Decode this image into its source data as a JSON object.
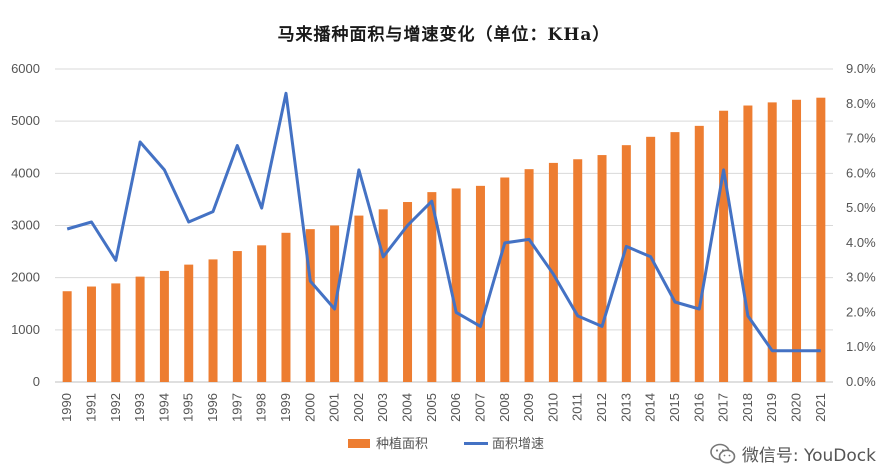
{
  "chart_data": {
    "type": "bar",
    "title": "马来播种面积与增速变化（单位：KHa）",
    "categories": [
      "1990",
      "1991",
      "1992",
      "1993",
      "1994",
      "1995",
      "1996",
      "1997",
      "1998",
      "1999",
      "2000",
      "2001",
      "2002",
      "2003",
      "2004",
      "2005",
      "2006",
      "2007",
      "2008",
      "2009",
      "2010",
      "2011",
      "2012",
      "2013",
      "2014",
      "2015",
      "2016",
      "2017",
      "2018",
      "2019",
      "2020",
      "2021"
    ],
    "series": [
      {
        "name": "种植面积",
        "type": "bar",
        "axis": "left",
        "color": "#ED7D31",
        "values": [
          1740,
          1830,
          1890,
          2020,
          2130,
          2250,
          2350,
          2510,
          2620,
          2860,
          2930,
          3000,
          3190,
          3310,
          3450,
          3640,
          3710,
          3760,
          3920,
          4080,
          4200,
          4270,
          4350,
          4540,
          4700,
          4790,
          4910,
          5200,
          5300,
          5360,
          5410,
          5450
        ]
      },
      {
        "name": "面积增速",
        "type": "line",
        "axis": "right",
        "color": "#4472C4",
        "values": [
          4.4,
          4.6,
          3.5,
          6.9,
          6.1,
          4.6,
          4.9,
          6.8,
          5.0,
          8.3,
          2.9,
          2.1,
          6.1,
          3.6,
          4.5,
          5.2,
          2.0,
          1.6,
          4.0,
          4.1,
          3.1,
          1.9,
          1.6,
          3.9,
          3.6,
          2.3,
          2.1,
          6.1,
          1.9,
          0.9,
          0.9,
          0.9
        ]
      }
    ],
    "y_left": {
      "ticks": [
        "0",
        "1000",
        "2000",
        "3000",
        "4000",
        "5000",
        "6000"
      ],
      "ylim": [
        0,
        6000
      ]
    },
    "y_right": {
      "ticks": [
        "0.0%",
        "1.0%",
        "2.0%",
        "3.0%",
        "4.0%",
        "5.0%",
        "6.0%",
        "7.0%",
        "8.0%",
        "9.0%"
      ],
      "ylim": [
        0,
        9.0
      ]
    },
    "grid": true,
    "legend_position": "bottom"
  },
  "watermark": {
    "text": "微信号: YouDock",
    "icon": "wechat-icon"
  }
}
